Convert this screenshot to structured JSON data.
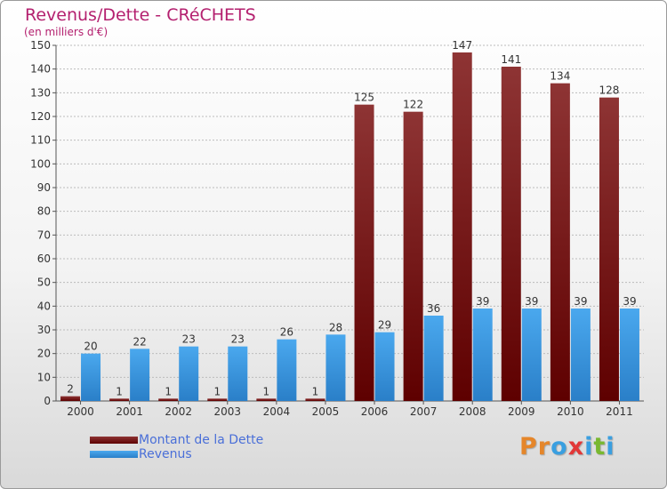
{
  "header": {
    "title": "Revenus/Dette - CRéCHETS",
    "subtitle": "(en milliers d'€)"
  },
  "colors": {
    "dette": "#7a1414",
    "revenus": "#3d9ae6",
    "title": "#b4206f",
    "legend_text": "#4a6fd8"
  },
  "chart_data": {
    "type": "bar",
    "title": "Revenus/Dette - CRéCHETS",
    "ylabel": "(en milliers d'€)",
    "xlabel": "",
    "ylim": [
      0,
      150
    ],
    "yticks": [
      0,
      10,
      20,
      30,
      40,
      50,
      60,
      70,
      80,
      90,
      100,
      110,
      120,
      130,
      140,
      150
    ],
    "grid": true,
    "legend_position": "bottom-left",
    "categories": [
      "2000",
      "2001",
      "2002",
      "2003",
      "2004",
      "2005",
      "2006",
      "2007",
      "2008",
      "2009",
      "2010",
      "2011"
    ],
    "series": [
      {
        "name": "Montant de la Dette",
        "values": [
          2,
          1,
          1,
          1,
          1,
          1,
          125,
          122,
          147,
          141,
          134,
          128
        ]
      },
      {
        "name": "Revenus",
        "values": [
          20,
          22,
          23,
          23,
          26,
          28,
          29,
          36,
          39,
          39,
          39,
          39
        ]
      }
    ]
  },
  "legend": {
    "items": [
      {
        "label": "Montant de la Dette"
      },
      {
        "label": "Revenus"
      }
    ]
  },
  "logo": {
    "letters": [
      "P",
      "r",
      "o",
      "x",
      "i",
      "t",
      "i"
    ],
    "colors": [
      "#e5862a",
      "#e5862a",
      "#3a9fe0",
      "#e23838",
      "#3a9fe0",
      "#79b830",
      "#3a9fe0"
    ]
  }
}
